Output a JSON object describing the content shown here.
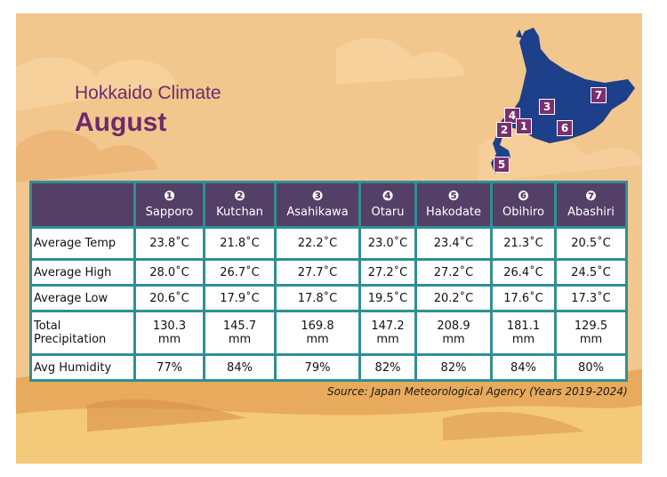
{
  "header": {
    "subtitle": "Hokkaido Climate",
    "title": "August"
  },
  "map": {
    "markers": [
      "7",
      "4",
      "3",
      "2",
      "1",
      "6",
      "5"
    ]
  },
  "table": {
    "columns": [
      {
        "num": "❶",
        "city": "Sapporo"
      },
      {
        "num": "❷",
        "city": "Kutchan"
      },
      {
        "num": "❸",
        "city": "Asahikawa"
      },
      {
        "num": "❹",
        "city": "Otaru"
      },
      {
        "num": "❺",
        "city": "Hakodate"
      },
      {
        "num": "❻",
        "city": "Obihiro"
      },
      {
        "num": "❼",
        "city": "Abashiri"
      }
    ],
    "rows": [
      {
        "label": "Average Temp",
        "values": [
          "23.8˚C",
          "21.8˚C",
          "22.2˚C",
          "23.0˚C",
          "23.4˚C",
          "21.3˚C",
          "20.5˚C"
        ]
      },
      {
        "label": "Average High",
        "values": [
          "28.0˚C",
          "26.7˚C",
          "27.7˚C",
          "27.2˚C",
          "27.2˚C",
          "26.4˚C",
          "24.5˚C"
        ]
      },
      {
        "label": "Average Low",
        "values": [
          "20.6˚C",
          "17.9˚C",
          "17.8˚C",
          "19.5˚C",
          "20.2˚C",
          "17.6˚C",
          "17.3˚C"
        ]
      },
      {
        "label_line1": "Total",
        "label_line2": "Precipitation",
        "unit": "mm",
        "values": [
          "130.3",
          "145.7",
          "169.8",
          "147.2",
          "208.9",
          "181.1",
          "129.5"
        ]
      },
      {
        "label": "Avg Humidity",
        "values": [
          "77%",
          "84%",
          "79%",
          "82%",
          "82%",
          "84%",
          "80%"
        ]
      }
    ]
  },
  "source": "Source: Japan Meteorological Agency (Years 2019-2024)",
  "colors": {
    "background": "#f2c78d",
    "title": "#6f2a6d",
    "header_row": "#543f66",
    "table_border": "#2f8f95",
    "map": "#1e3f8a",
    "marker": "#7a2f6f"
  }
}
